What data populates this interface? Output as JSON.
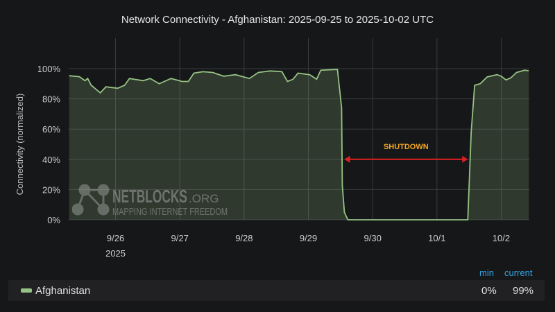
{
  "chart_data": {
    "type": "area",
    "title": "Network Connectivity - Afghanistan: 2025-09-25 to 2025-10-02 UTC",
    "ylabel": "Connectivity (normalized)",
    "xlabel": "",
    "ylim": [
      0,
      100
    ],
    "xlim": [
      "2025-09-25T06:30",
      "2025-10-02T10:30"
    ],
    "yticks": [
      "0%",
      "20%",
      "40%",
      "60%",
      "80%",
      "100%"
    ],
    "xticks": [
      {
        "t": "2025-09-26T00:00",
        "label": "9/26",
        "sub": "2025"
      },
      {
        "t": "2025-09-27T00:00",
        "label": "9/27"
      },
      {
        "t": "2025-09-28T00:00",
        "label": "9/28"
      },
      {
        "t": "2025-09-29T00:00",
        "label": "9/29"
      },
      {
        "t": "2025-09-30T00:00",
        "label": "9/30"
      },
      {
        "t": "2025-10-01T00:00",
        "label": "10/1"
      },
      {
        "t": "2025-10-02T00:00",
        "label": "10/2"
      }
    ],
    "grid": true,
    "series": [
      {
        "name": "Afghanistan",
        "color": "#96c383",
        "points": [
          [
            "2025-09-25T06:40",
            95.3
          ],
          [
            "2025-09-25T10:30",
            94.7
          ],
          [
            "2025-09-25T12:36",
            92
          ],
          [
            "2025-09-25T13:36",
            93.5
          ],
          [
            "2025-09-25T14:55",
            89
          ],
          [
            "2025-09-25T18:18",
            84
          ],
          [
            "2025-09-25T20:24",
            88
          ],
          [
            "2025-09-26T00:47",
            87
          ],
          [
            "2025-09-26T03:22",
            89
          ],
          [
            "2025-09-26T05:11",
            93.5
          ],
          [
            "2025-09-26T10:21",
            92
          ],
          [
            "2025-09-26T12:56",
            93.5
          ],
          [
            "2025-09-26T16:18",
            90
          ],
          [
            "2025-09-26T20:43",
            93.5
          ],
          [
            "2025-09-27T00:51",
            91.5
          ],
          [
            "2025-09-27T03:11",
            91.5
          ],
          [
            "2025-09-27T05:15",
            97
          ],
          [
            "2025-09-27T08:37",
            98
          ],
          [
            "2025-09-27T12:15",
            97.5
          ],
          [
            "2025-09-27T16:23",
            95
          ],
          [
            "2025-09-27T20:47",
            96
          ],
          [
            "2025-09-28T01:58",
            93.5
          ],
          [
            "2025-09-28T05:20",
            97.5
          ],
          [
            "2025-09-28T09:44",
            98.5
          ],
          [
            "2025-09-28T14:08",
            98
          ],
          [
            "2025-09-28T16:12",
            91.5
          ],
          [
            "2025-09-28T18:17",
            93
          ],
          [
            "2025-09-28T20:06",
            97
          ],
          [
            "2025-09-29T00:30",
            96
          ],
          [
            "2025-09-29T03:05",
            93
          ],
          [
            "2025-09-29T04:38",
            99
          ],
          [
            "2025-09-29T10:51",
            99.5
          ],
          [
            "2025-09-29T12:24",
            74
          ],
          [
            "2025-09-29T12:40",
            23
          ],
          [
            "2025-09-29T13:26",
            5
          ],
          [
            "2025-09-29T14:44",
            0
          ],
          [
            "2025-10-01T11:31",
            0
          ],
          [
            "2025-10-01T12:47",
            58
          ],
          [
            "2025-10-01T14:05",
            89
          ],
          [
            "2025-10-01T16:09",
            90
          ],
          [
            "2025-10-01T18:45",
            94.5
          ],
          [
            "2025-10-01T22:26",
            96
          ],
          [
            "2025-10-02T00:00",
            95
          ],
          [
            "2025-10-02T01:49",
            92.5
          ],
          [
            "2025-10-02T03:38",
            94
          ],
          [
            "2025-10-02T05:42",
            97.5
          ],
          [
            "2025-10-02T08:48",
            99
          ],
          [
            "2025-10-02T10:18",
            98.5
          ]
        ]
      }
    ],
    "annotations": [
      {
        "text": "SHUTDOWN",
        "from": "2025-09-29T13:26",
        "to": "2025-10-01T11:31",
        "y": 40,
        "text_color": "#f5a623",
        "arrow_color": "#e02020"
      }
    ]
  },
  "legend": {
    "headers": {
      "min": "min",
      "current": "current"
    },
    "rows": [
      {
        "name": "Afghanistan",
        "min": "0%",
        "current": "99%"
      }
    ]
  },
  "watermark": {
    "brand": "NETBLOCKS",
    "tld": ".ORG",
    "tm": "™",
    "tagline": "MAPPING INTERNET FREEDOM"
  }
}
